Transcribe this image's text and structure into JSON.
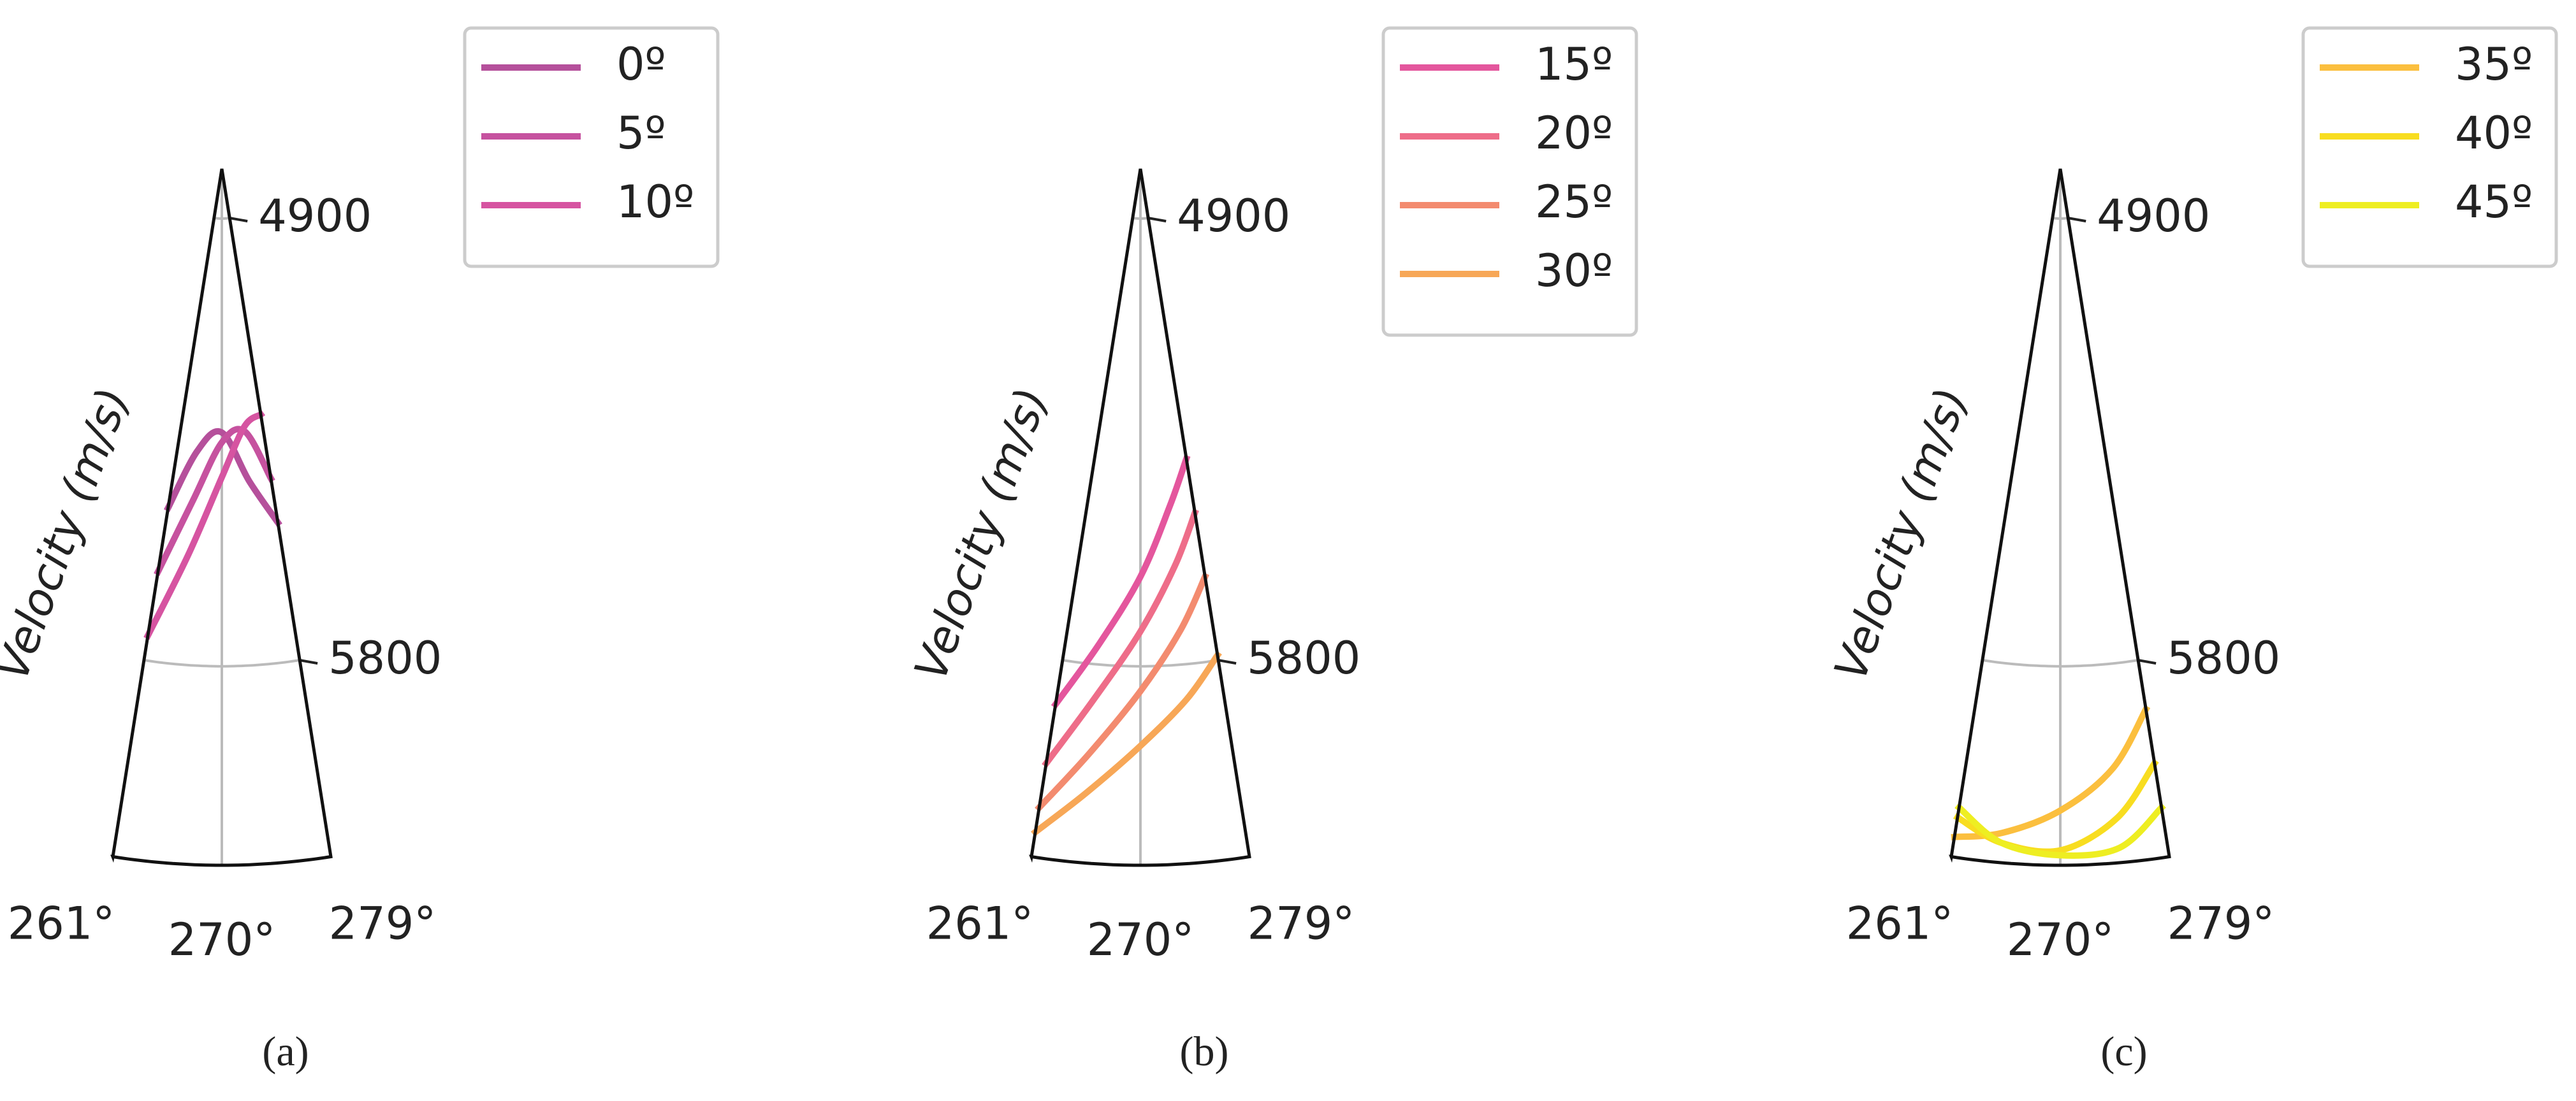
{
  "chart_data": [
    {
      "type": "polar",
      "caption": "(a)",
      "ylabel": "Velocity (m/s)",
      "thetalim": [
        261,
        279
      ],
      "thetaticks": [
        {
          "value": 261,
          "label": "261°"
        },
        {
          "value": 270,
          "label": "270°"
        },
        {
          "value": 279,
          "label": "279°"
        }
      ],
      "rlim": [
        4800,
        6200
      ],
      "rticks": [
        4900,
        5800
      ],
      "grid": true,
      "x": [
        261,
        265,
        270,
        275,
        279
      ],
      "series": [
        {
          "name": "0º",
          "color": "#b5509b",
          "values": [
            5490,
            5370,
            5330,
            5430,
            5520
          ]
        },
        {
          "name": "5º",
          "color": "#c6529f",
          "values": [
            5620,
            5470,
            5350,
            5330,
            5430
          ]
        },
        {
          "name": "10º",
          "color": "#d654a1",
          "values": [
            5750,
            5580,
            5420,
            5320,
            5300
          ]
        }
      ]
    },
    {
      "type": "polar",
      "caption": "(b)",
      "ylabel": "Velocity (m/s)",
      "thetalim": [
        261,
        279
      ],
      "thetaticks": [
        {
          "value": 261,
          "label": "261°"
        },
        {
          "value": 270,
          "label": "270°"
        },
        {
          "value": 279,
          "label": "279°"
        }
      ],
      "rlim": [
        4800,
        6200
      ],
      "rticks": [
        4900,
        5800
      ],
      "grid": true,
      "x": [
        261,
        265,
        270,
        275,
        279
      ],
      "series": [
        {
          "name": "15º",
          "color": "#e4569d",
          "values": [
            5890,
            5760,
            5620,
            5480,
            5390
          ]
        },
        {
          "name": "20º",
          "color": "#ee6d89",
          "values": [
            6010,
            5870,
            5730,
            5600,
            5500
          ]
        },
        {
          "name": "25º",
          "color": "#f38b6f",
          "values": [
            6100,
            5980,
            5850,
            5730,
            5630
          ]
        },
        {
          "name": "30º",
          "color": "#f7a757",
          "values": [
            6150,
            6060,
            5960,
            5870,
            5790
          ]
        }
      ]
    },
    {
      "type": "polar",
      "caption": "(c)",
      "ylabel": "Velocity (m/s)",
      "thetalim": [
        261,
        279
      ],
      "thetaticks": [
        {
          "value": 261,
          "label": "261°"
        },
        {
          "value": 270,
          "label": "270°"
        },
        {
          "value": 279,
          "label": "279°"
        }
      ],
      "rlim": [
        4800,
        6200
      ],
      "rticks": [
        4900,
        5800
      ],
      "grid": true,
      "x": [
        261,
        265,
        270,
        275,
        279
      ],
      "series": [
        {
          "name": "35º",
          "color": "#fbbf3e",
          "values": [
            6160,
            6140,
            6090,
            6010,
            5900
          ]
        },
        {
          "name": "40º",
          "color": "#f8dd20",
          "values": [
            6120,
            6160,
            6170,
            6110,
            6010
          ]
        },
        {
          "name": "45º",
          "color": "#eeee22",
          "values": [
            6100,
            6160,
            6180,
            6170,
            6100
          ]
        }
      ]
    }
  ]
}
